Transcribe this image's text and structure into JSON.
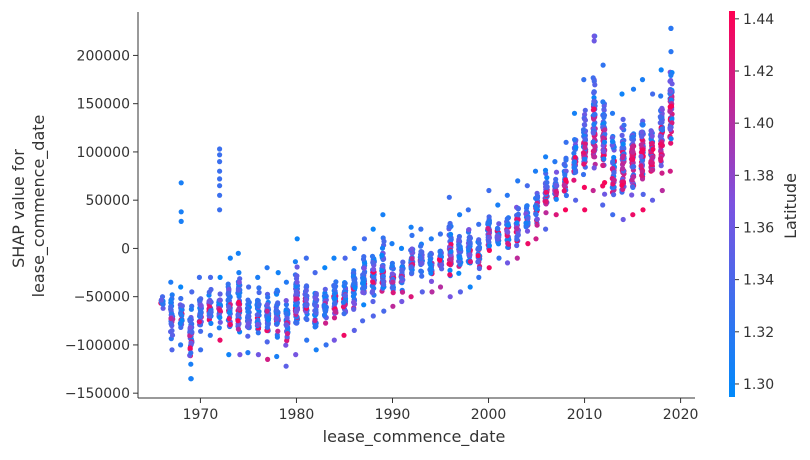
{
  "chart_data": {
    "type": "scatter",
    "title": "",
    "xlabel": "lease_commence_date",
    "ylabel_lines": [
      "SHAP value for",
      "lease_commence_date"
    ],
    "xlim": [
      1963.5,
      2021.5
    ],
    "ylim": [
      -155000,
      245000
    ],
    "x_ticks": [
      1970,
      1980,
      1990,
      2000,
      2010,
      2020
    ],
    "y_ticks": [
      -150000,
      -100000,
      -50000,
      0,
      50000,
      100000,
      150000,
      200000
    ],
    "y_tick_labels": [
      "−150000",
      "−100000",
      "−50000",
      "0",
      "50000",
      "100000",
      "150000",
      "200000"
    ],
    "colorbar": {
      "label": "Latitude",
      "range": [
        1.295,
        1.443
      ],
      "ticks": [
        1.3,
        1.32,
        1.34,
        1.36,
        1.38,
        1.4,
        1.42,
        1.44
      ],
      "tick_labels": [
        "1.30",
        "1.32",
        "1.34",
        "1.36",
        "1.38",
        "1.40",
        "1.42",
        "1.44"
      ],
      "colors": [
        "#008afb",
        "#7c52e0",
        "#ff0052"
      ]
    },
    "grid": false,
    "columns": [
      {
        "x": 1966,
        "min": -62000,
        "max": -50000,
        "mean": -55000
      },
      {
        "x": 1967,
        "min": -105000,
        "max": -35000,
        "mean": -70000
      },
      {
        "x": 1968,
        "min": -100000,
        "max": -40000,
        "mean": -68000
      },
      {
        "x": 1969,
        "min": -135000,
        "max": -45000,
        "mean": -80000
      },
      {
        "x": 1970,
        "min": -105000,
        "max": -30000,
        "mean": -70000
      },
      {
        "x": 1971,
        "min": -90000,
        "max": -30000,
        "mean": -62000
      },
      {
        "x": 1972,
        "min": -95000,
        "max": -30000,
        "mean": -60000
      },
      {
        "x": 1973,
        "min": -110000,
        "max": -10000,
        "mean": -60000
      },
      {
        "x": 1974,
        "min": -110000,
        "max": -5000,
        "mean": -60000
      },
      {
        "x": 1975,
        "min": -108000,
        "max": -40000,
        "mean": -72000
      },
      {
        "x": 1976,
        "min": -110000,
        "max": -30000,
        "mean": -72000
      },
      {
        "x": 1977,
        "min": -115000,
        "max": -20000,
        "mean": -70000
      },
      {
        "x": 1978,
        "min": -112000,
        "max": -25000,
        "mean": -68000
      },
      {
        "x": 1979,
        "min": -122000,
        "max": -35000,
        "mean": -75000
      },
      {
        "x": 1980,
        "min": -110000,
        "max": 10000,
        "mean": -55000
      },
      {
        "x": 1981,
        "min": -95000,
        "max": -10000,
        "mean": -55000
      },
      {
        "x": 1982,
        "min": -105000,
        "max": -25000,
        "mean": -62000
      },
      {
        "x": 1983,
        "min": -100000,
        "max": -20000,
        "mean": -55000
      },
      {
        "x": 1984,
        "min": -95000,
        "max": -10000,
        "mean": -52000
      },
      {
        "x": 1985,
        "min": -90000,
        "max": -10000,
        "mean": -50000
      },
      {
        "x": 1986,
        "min": -85000,
        "max": 0,
        "mean": -45000
      },
      {
        "x": 1987,
        "min": -75000,
        "max": 10000,
        "mean": -35000
      },
      {
        "x": 1988,
        "min": -70000,
        "max": 20000,
        "mean": -30000
      },
      {
        "x": 1989,
        "min": -65000,
        "max": 35000,
        "mean": -20000
      },
      {
        "x": 1990,
        "min": -60000,
        "max": 5000,
        "mean": -30000
      },
      {
        "x": 1991,
        "min": -55000,
        "max": 0,
        "mean": -30000
      },
      {
        "x": 1992,
        "min": -50000,
        "max": 22000,
        "mean": -15000
      },
      {
        "x": 1993,
        "min": -45000,
        "max": 20000,
        "mean": -15000
      },
      {
        "x": 1994,
        "min": -45000,
        "max": 10000,
        "mean": -15000
      },
      {
        "x": 1995,
        "min": -40000,
        "max": 15000,
        "mean": -10000
      },
      {
        "x": 1996,
        "min": -50000,
        "max": 53000,
        "mean": -5000
      },
      {
        "x": 1997,
        "min": -45000,
        "max": 35000,
        "mean": -5000
      },
      {
        "x": 1998,
        "min": -40000,
        "max": 40000,
        "mean": 0
      },
      {
        "x": 1999,
        "min": -30000,
        "max": 25000,
        "mean": -5000
      },
      {
        "x": 2000,
        "min": -20000,
        "max": 60000,
        "mean": 10000
      },
      {
        "x": 2001,
        "min": -10000,
        "max": 45000,
        "mean": 15000
      },
      {
        "x": 2002,
        "min": -15000,
        "max": 55000,
        "mean": 15000
      },
      {
        "x": 2003,
        "min": -10000,
        "max": 70000,
        "mean": 20000
      },
      {
        "x": 2004,
        "min": 5000,
        "max": 65000,
        "mean": 30000
      },
      {
        "x": 2005,
        "min": 10000,
        "max": 80000,
        "mean": 40000
      },
      {
        "x": 2006,
        "min": 20000,
        "max": 95000,
        "mean": 55000
      },
      {
        "x": 2007,
        "min": 35000,
        "max": 90000,
        "mean": 60000
      },
      {
        "x": 2008,
        "min": 40000,
        "max": 110000,
        "mean": 75000
      },
      {
        "x": 2009,
        "min": 50000,
        "max": 140000,
        "mean": 90000
      },
      {
        "x": 2010,
        "min": 40000,
        "max": 175000,
        "mean": 100000
      },
      {
        "x": 2011,
        "min": 60000,
        "max": 220000,
        "mean": 110000
      },
      {
        "x": 2012,
        "min": 45000,
        "max": 190000,
        "mean": 95000
      },
      {
        "x": 2013,
        "min": 35000,
        "max": 140000,
        "mean": 80000
      },
      {
        "x": 2014,
        "min": 30000,
        "max": 160000,
        "mean": 85000
      },
      {
        "x": 2015,
        "min": 35000,
        "max": 165000,
        "mean": 85000
      },
      {
        "x": 2016,
        "min": 40000,
        "max": 175000,
        "mean": 95000
      },
      {
        "x": 2017,
        "min": 50000,
        "max": 160000,
        "mean": 95000
      },
      {
        "x": 2018,
        "min": 60000,
        "max": 185000,
        "mean": 110000
      },
      {
        "x": 2019,
        "min": 80000,
        "max": 228000,
        "mean": 140000
      }
    ],
    "outliers": [
      {
        "x": 1968,
        "y": 68000,
        "lat": 1.31
      },
      {
        "x": 1968,
        "y": 38000,
        "lat": 1.31
      },
      {
        "x": 1968,
        "y": 28000,
        "lat": 1.31
      },
      {
        "x": 1972,
        "y": 103000,
        "lat": 1.33
      },
      {
        "x": 1972,
        "y": 97000,
        "lat": 1.33
      },
      {
        "x": 1972,
        "y": 90000,
        "lat": 1.33
      },
      {
        "x": 1972,
        "y": 80000,
        "lat": 1.33
      },
      {
        "x": 1972,
        "y": 72000,
        "lat": 1.33
      },
      {
        "x": 1972,
        "y": 65000,
        "lat": 1.33
      },
      {
        "x": 1972,
        "y": 55000,
        "lat": 1.33
      },
      {
        "x": 1972,
        "y": 40000,
        "lat": 1.33
      },
      {
        "x": 1969,
        "y": -120000,
        "lat": 1.31
      },
      {
        "x": 1969,
        "y": -135000,
        "lat": 1.31
      },
      {
        "x": 2011,
        "y": 220000,
        "lat": 1.36
      },
      {
        "x": 2011,
        "y": 215000,
        "lat": 1.36
      },
      {
        "x": 2019,
        "y": 228000,
        "lat": 1.32
      },
      {
        "x": 2019,
        "y": 204000,
        "lat": 1.32
      }
    ]
  }
}
